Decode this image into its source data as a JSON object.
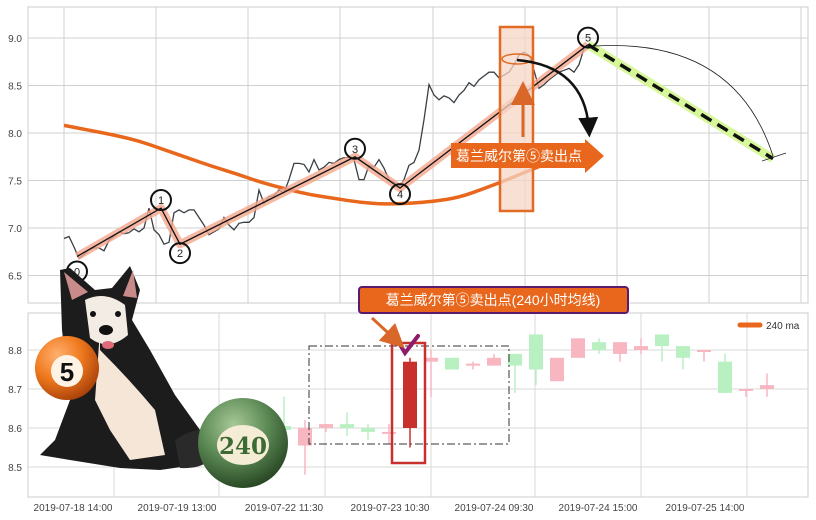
{
  "chart_data": [
    {
      "type": "line",
      "ylim": [
        6.25,
        9.35
      ],
      "y_ticks": [
        "9.0",
        "8.5",
        "8.0",
        "7.5",
        "7.0",
        "6.5"
      ],
      "grid": true,
      "series": [
        {
          "values": [
            6.89,
            6.91,
            6.8,
            6.68,
            6.72,
            6.77,
            6.79,
            6.79,
            6.76,
            6.87,
            6.91,
            6.96,
            6.94,
            6.95,
            6.99,
            6.96,
            7.0,
            7.21,
            6.98,
            6.93,
            6.83,
            6.85,
            7.16,
            7.19,
            7.16,
            7.19,
            7.19,
            7.11,
            7.03,
            6.93,
            6.96,
            6.99,
            7.11,
            7.03,
            6.98,
            7.05,
            7.06,
            7.06,
            7.11,
            7.4,
            7.26,
            7.33,
            7.34,
            7.4,
            7.37,
            7.51,
            7.68,
            7.68,
            7.67,
            7.59,
            7.72,
            7.61,
            7.64,
            7.69,
            7.68,
            7.72,
            7.74,
            7.74,
            7.72,
            7.51,
            7.51,
            7.66,
            7.64,
            7.72,
            7.63,
            7.51,
            7.48,
            7.43,
            7.51,
            7.66,
            7.69,
            7.82,
            8.14,
            8.51,
            8.4,
            8.35,
            8.39,
            8.37,
            8.32,
            8.4,
            8.45,
            8.53,
            8.49,
            8.56,
            8.6,
            8.64,
            8.64,
            8.58,
            8.61,
            8.64,
            8.72,
            8.82,
            8.85,
            8.82,
            8.66,
            8.47,
            8.51,
            8.56,
            8.6,
            8.64,
            8.66,
            8.68,
            8.64,
            8.72,
            8.89
          ],
          "color": "#3a3f44"
        },
        {
          "values": [
            8.08,
            8.03,
            7.98,
            7.92,
            7.83,
            7.74,
            7.65,
            7.57,
            7.48,
            7.41,
            7.35,
            7.31,
            7.27,
            7.25,
            7.26,
            7.28,
            7.32,
            7.41,
            7.51,
            7.62,
            7.72
          ],
          "color": "#e8671c"
        }
      ],
      "wave_points": [
        {
          "label": "0",
          "value": 6.7
        },
        {
          "label": "1",
          "value": 7.21
        },
        {
          "label": "2",
          "value": 6.83
        },
        {
          "label": "3",
          "value": 7.75
        },
        {
          "label": "4",
          "value": 7.42
        },
        {
          "label": "5",
          "value": 8.93
        }
      ],
      "projection_target": 7.73,
      "annotation": "葛兰威尔第⑤卖出点"
    },
    {
      "type": "candlestick",
      "ylim": [
        8.42,
        8.9
      ],
      "y_ticks": [
        "8.8",
        "8.7",
        "8.6",
        "8.5"
      ],
      "x_ticks": [
        "2019-07-18 14:00",
        "2019-07-19 13:00",
        "2019-07-22 11:30",
        "2019-07-23 10:30",
        "2019-07-24 09:30",
        "2019-07-24 15:00",
        "2019-07-25 14:00"
      ],
      "legend": {
        "label": "240 ma",
        "color": "#e8671c",
        "position": "top-right"
      },
      "annotation": "葛兰威尔第⑤卖出点(240小时均线)",
      "colors": {
        "up": "#f7b6c0",
        "down": "#b9f0c2",
        "highlight": "#c8302e"
      },
      "candles": [
        {
          "o": 8.605,
          "c": 8.595,
          "h": 8.68,
          "l": 8.59
        },
        {
          "o": 8.555,
          "c": 8.6,
          "h": 8.62,
          "l": 8.48
        },
        {
          "o": 8.6,
          "c": 8.61,
          "h": 8.61,
          "l": 8.59
        },
        {
          "o": 8.61,
          "c": 8.6,
          "h": 8.64,
          "l": 8.58
        },
        {
          "o": 8.6,
          "c": 8.59,
          "h": 8.61,
          "l": 8.57
        },
        {
          "o": 8.585,
          "c": 8.59,
          "h": 8.61,
          "l": 8.56
        },
        {
          "o": 8.6,
          "c": 8.77,
          "h": 8.78,
          "l": 8.55,
          "highlight": true
        },
        {
          "o": 8.77,
          "c": 8.78,
          "h": 8.8,
          "l": 8.68
        },
        {
          "o": 8.78,
          "c": 8.75,
          "h": 8.78,
          "l": 8.75
        },
        {
          "o": 8.76,
          "c": 8.765,
          "h": 8.77,
          "l": 8.75
        },
        {
          "o": 8.76,
          "c": 8.78,
          "h": 8.79,
          "l": 8.76
        },
        {
          "o": 8.79,
          "c": 8.76,
          "h": 8.79,
          "l": 8.69
        },
        {
          "o": 8.84,
          "c": 8.75,
          "h": 8.84,
          "l": 8.71
        },
        {
          "o": 8.72,
          "c": 8.78,
          "h": 8.78,
          "l": 8.72
        },
        {
          "o": 8.78,
          "c": 8.83,
          "h": 8.83,
          "l": 8.78
        },
        {
          "o": 8.82,
          "c": 8.8,
          "h": 8.83,
          "l": 8.79
        },
        {
          "o": 8.79,
          "c": 8.82,
          "h": 8.82,
          "l": 8.77
        },
        {
          "o": 8.8,
          "c": 8.81,
          "h": 8.83,
          "l": 8.79
        },
        {
          "o": 8.84,
          "c": 8.81,
          "h": 8.84,
          "l": 8.77
        },
        {
          "o": 8.81,
          "c": 8.78,
          "h": 8.81,
          "l": 8.75
        },
        {
          "o": 8.795,
          "c": 8.8,
          "h": 8.8,
          "l": 8.77
        },
        {
          "o": 8.77,
          "c": 8.69,
          "h": 8.79,
          "l": 8.69
        },
        {
          "o": 8.695,
          "c": 8.7,
          "h": 8.7,
          "l": 8.68
        },
        {
          "o": 8.7,
          "c": 8.71,
          "h": 8.74,
          "l": 8.68
        }
      ]
    }
  ],
  "illustration": {
    "ball_left": "5",
    "ball_right": "240"
  }
}
